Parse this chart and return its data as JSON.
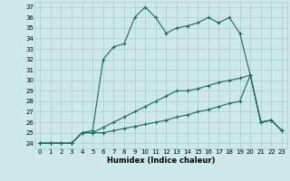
{
  "xlabel": "Humidex (Indice chaleur)",
  "bg_color": "#cce8ea",
  "grid_color": "#aacccc",
  "line_color": "#1a6b5a",
  "xlim": [
    -0.5,
    23.5
  ],
  "ylim": [
    23.5,
    37.5
  ],
  "xticks": [
    0,
    1,
    2,
    3,
    4,
    5,
    6,
    7,
    8,
    9,
    10,
    11,
    12,
    13,
    14,
    15,
    16,
    17,
    18,
    19,
    20,
    21,
    22,
    23
  ],
  "yticks": [
    24,
    25,
    26,
    27,
    28,
    29,
    30,
    31,
    32,
    33,
    34,
    35,
    36,
    37
  ],
  "series1": [
    24.0,
    24.0,
    24.0,
    24.0,
    25.0,
    25.2,
    32.0,
    33.2,
    33.5,
    36.0,
    37.0,
    36.0,
    34.5,
    35.0,
    35.2,
    35.5,
    36.0,
    35.5,
    36.0,
    34.5,
    30.5,
    26.0,
    26.2,
    25.2
  ],
  "series2": [
    24.0,
    24.0,
    24.0,
    24.0,
    25.0,
    25.0,
    25.5,
    26.0,
    26.5,
    27.0,
    27.5,
    28.0,
    28.5,
    29.0,
    29.0,
    29.2,
    29.5,
    29.8,
    30.0,
    30.2,
    30.5,
    26.0,
    26.2,
    25.2
  ],
  "series3": [
    24.0,
    24.0,
    24.0,
    24.0,
    25.0,
    25.0,
    25.0,
    25.2,
    25.4,
    25.6,
    25.8,
    26.0,
    26.2,
    26.5,
    26.7,
    27.0,
    27.2,
    27.5,
    27.8,
    28.0,
    30.5,
    26.0,
    26.2,
    25.2
  ],
  "figsize": [
    3.2,
    2.0
  ],
  "dpi": 100,
  "tick_fontsize": 5,
  "xlabel_fontsize": 6
}
